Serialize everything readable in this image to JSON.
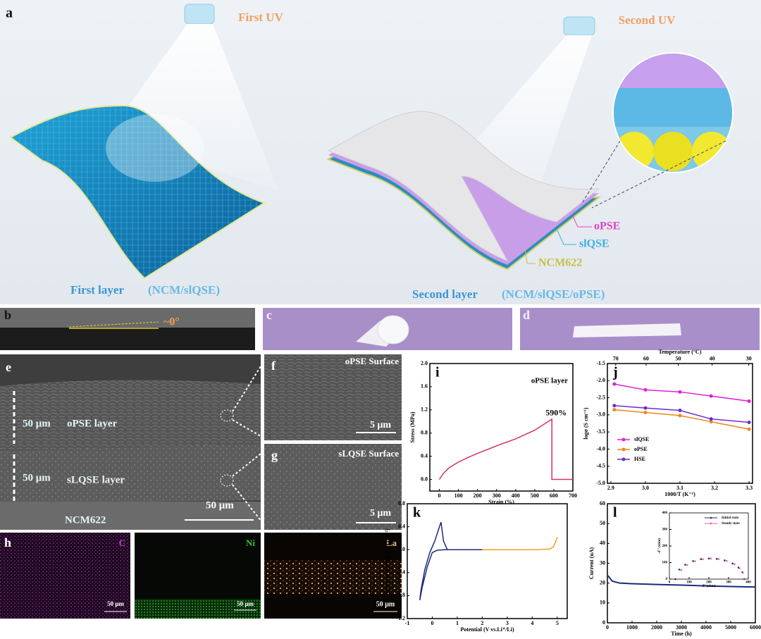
{
  "panel_a": {
    "label": "a",
    "first_uv": "First UV",
    "second_uv": "Second UV",
    "first_layer": "First layer",
    "first_layer_formula": "(NCM/slQSE)",
    "second_layer": "Second layer",
    "second_layer_formula": "(NCM/slQSE/oPSE)",
    "layers": [
      "oPSE",
      "slQSE",
      "NCM622"
    ]
  },
  "panel_b": {
    "label": "b",
    "angle": "~0°"
  },
  "panel_c": {
    "label": "c"
  },
  "panel_d": {
    "label": "d"
  },
  "panel_e": {
    "label": "e",
    "upper_scale": "50 μm",
    "upper_layer": "oPSE layer",
    "lower_scale": "50 μm",
    "lower_layer": "sLQSE layer",
    "scale_bar": "50 μm",
    "substrate": "NCM622"
  },
  "panel_f": {
    "label": "f",
    "title": "oPSE Surface",
    "scale_bar": "5 μm"
  },
  "panel_g": {
    "label": "g",
    "title": "sLQSE Surface",
    "scale_bar": "5 μm"
  },
  "panel_h": {
    "label": "h",
    "maps": [
      {
        "element": "C",
        "scale_bar": "50 μm"
      },
      {
        "element": "Ni",
        "scale_bar": "50 μm"
      },
      {
        "element": "La",
        "scale_bar": "50 μm"
      }
    ]
  },
  "chart_data": [
    {
      "type": "line",
      "label": "i",
      "note": "oPSE layer",
      "peak_label": "590%",
      "x_label": "Strain (%)",
      "y_label": "Stress (MPa)",
      "xlim": [
        -50,
        700
      ],
      "xticks": [
        0,
        100,
        200,
        300,
        400,
        500,
        600,
        700
      ],
      "ylim": [
        -0.2,
        2.0
      ],
      "yticks": [
        {
          "value": 0,
          "label": "0.0"
        },
        0.4,
        0.8,
        1.2,
        1.6,
        {
          "value": 2,
          "label": "2.0"
        }
      ],
      "series": [
        {
          "color": "#d62f6a",
          "x": [
            0,
            20,
            50,
            100,
            150,
            200,
            300,
            400,
            500,
            590,
            590,
            700
          ],
          "values": [
            0,
            0.1,
            0.2,
            0.3,
            0.38,
            0.45,
            0.58,
            0.7,
            0.85,
            1.04,
            0,
            0
          ]
        }
      ]
    },
    {
      "type": "line",
      "label": "j",
      "markers": true,
      "legend": "lower left",
      "x_label": "1000/T (K⁻¹)",
      "y_label": "logσ (S cm⁻¹)",
      "x2_label": "Temperature (°C)",
      "xlim": [
        2.89,
        3.31
      ],
      "xticks": [
        2.9,
        {
          "value": 3,
          "label": "3.0"
        },
        3.1,
        3.2,
        3.3
      ],
      "x2ticks": [
        {
          "value": 2.914,
          "label": "70"
        },
        {
          "value": 3.002,
          "label": "60"
        },
        {
          "value": 3.095,
          "label": "50"
        },
        {
          "value": 3.193,
          "label": "40"
        },
        {
          "value": 3.299,
          "label": "30"
        }
      ],
      "ylim": [
        -5.0,
        -1.5
      ],
      "yticks": [
        -1.5,
        {
          "value": -2,
          "label": "-2.0"
        },
        -2.5,
        {
          "value": -3,
          "label": "-3.0"
        },
        -3.5,
        {
          "value": -4,
          "label": "-4.0"
        },
        -4.5,
        {
          "value": -5,
          "label": "-5.0"
        }
      ],
      "series": [
        {
          "name": "slQSE",
          "color": "#e020d8",
          "x": [
            2.91,
            3.0,
            3.1,
            3.19,
            3.3
          ],
          "values": [
            -2.1,
            -2.27,
            -2.33,
            -2.45,
            -2.6
          ]
        },
        {
          "name": "oPSE",
          "color": "#f0841c",
          "x": [
            2.91,
            3.0,
            3.1,
            3.19,
            3.3
          ],
          "values": [
            -2.85,
            -2.93,
            -3.02,
            -3.2,
            -3.42
          ]
        },
        {
          "name": "HSE",
          "color": "#6a2ccf",
          "x": [
            2.91,
            3.0,
            3.1,
            3.19,
            3.3
          ],
          "values": [
            -2.73,
            -2.8,
            -2.87,
            -3.12,
            -3.22
          ]
        }
      ]
    },
    {
      "type": "line",
      "label": "k",
      "x_label": "Potential (V vs.Li⁺/Li)",
      "y_label": "Current density (mA cm⁻²)",
      "xlim": [
        -1,
        5.4
      ],
      "xticks": [
        -1,
        0,
        1,
        2,
        3,
        4,
        5
      ],
      "ylim": [
        -1.2,
        0.8
      ],
      "yticks": [
        -1.2,
        -0.8,
        -0.4,
        {
          "value": 0,
          "label": "0.0"
        },
        0.4,
        0.8
      ],
      "series": [
        {
          "color": "#1c2a7a",
          "x": [
            2,
            1,
            0.5,
            0.2,
            0,
            -0.2,
            -0.4,
            -0.5,
            -0.45,
            -0.3,
            -0.1,
            0.1,
            0.25,
            0.35,
            0.45,
            0.6,
            1,
            2
          ],
          "values": [
            0,
            0,
            0,
            -0.01,
            -0.05,
            -0.3,
            -0.65,
            -0.88,
            -0.7,
            -0.35,
            -0.05,
            0.15,
            0.35,
            0.48,
            0.15,
            0,
            0,
            0
          ]
        },
        {
          "color": "#f0a020",
          "x": [
            2,
            3,
            4,
            4.7,
            4.85,
            4.95,
            5.0
          ],
          "values": [
            0,
            0,
            0,
            0.01,
            0.05,
            0.15,
            0.22
          ]
        }
      ]
    },
    {
      "type": "line",
      "label": "l",
      "x_label": "Time (h)",
      "y_label": "Current (uA)",
      "xlim": [
        0,
        6000
      ],
      "xticks": [
        0,
        1000,
        2000,
        3000,
        4000,
        5000,
        6000
      ],
      "ylim": [
        0,
        60
      ],
      "yticks": [
        0,
        10,
        20,
        30,
        40,
        50,
        60
      ],
      "series": [
        {
          "color": "#1c2a7a",
          "x": [
            0,
            200,
            500,
            1000,
            2000,
            3000,
            4000,
            5000,
            6000
          ],
          "values": [
            24,
            21,
            20,
            19.7,
            19.3,
            19,
            18.6,
            18.3,
            18
          ]
        }
      ]
    },
    {
      "type": "scatter",
      "legend": "upper right",
      "x_label": "Z' (ohm)",
      "y_label": "-Z'' (ohm)",
      "xlim": [
        0,
        400
      ],
      "xticks": [
        0,
        100,
        200,
        300,
        400
      ],
      "ylim": [
        0,
        400
      ],
      "yticks": [
        0,
        100,
        200,
        300,
        400
      ],
      "series": [
        {
          "name": "Initial state",
          "color": "#1c2a7a",
          "x": [
            30,
            50,
            80,
            120,
            160,
            200,
            240,
            280,
            320,
            350,
            370,
            380
          ],
          "values": [
            0,
            58,
            87,
            109,
            121,
            125,
            122,
            113,
            94,
            70,
            42,
            0
          ]
        },
        {
          "name": "Steady state",
          "color": "#f06090",
          "x": [
            40,
            60,
            90,
            130,
            170,
            210,
            250,
            290,
            330,
            355,
            372,
            385
          ],
          "values": [
            0,
            55,
            85,
            108,
            120,
            124,
            121,
            110,
            90,
            65,
            38,
            0
          ]
        }
      ]
    }
  ]
}
